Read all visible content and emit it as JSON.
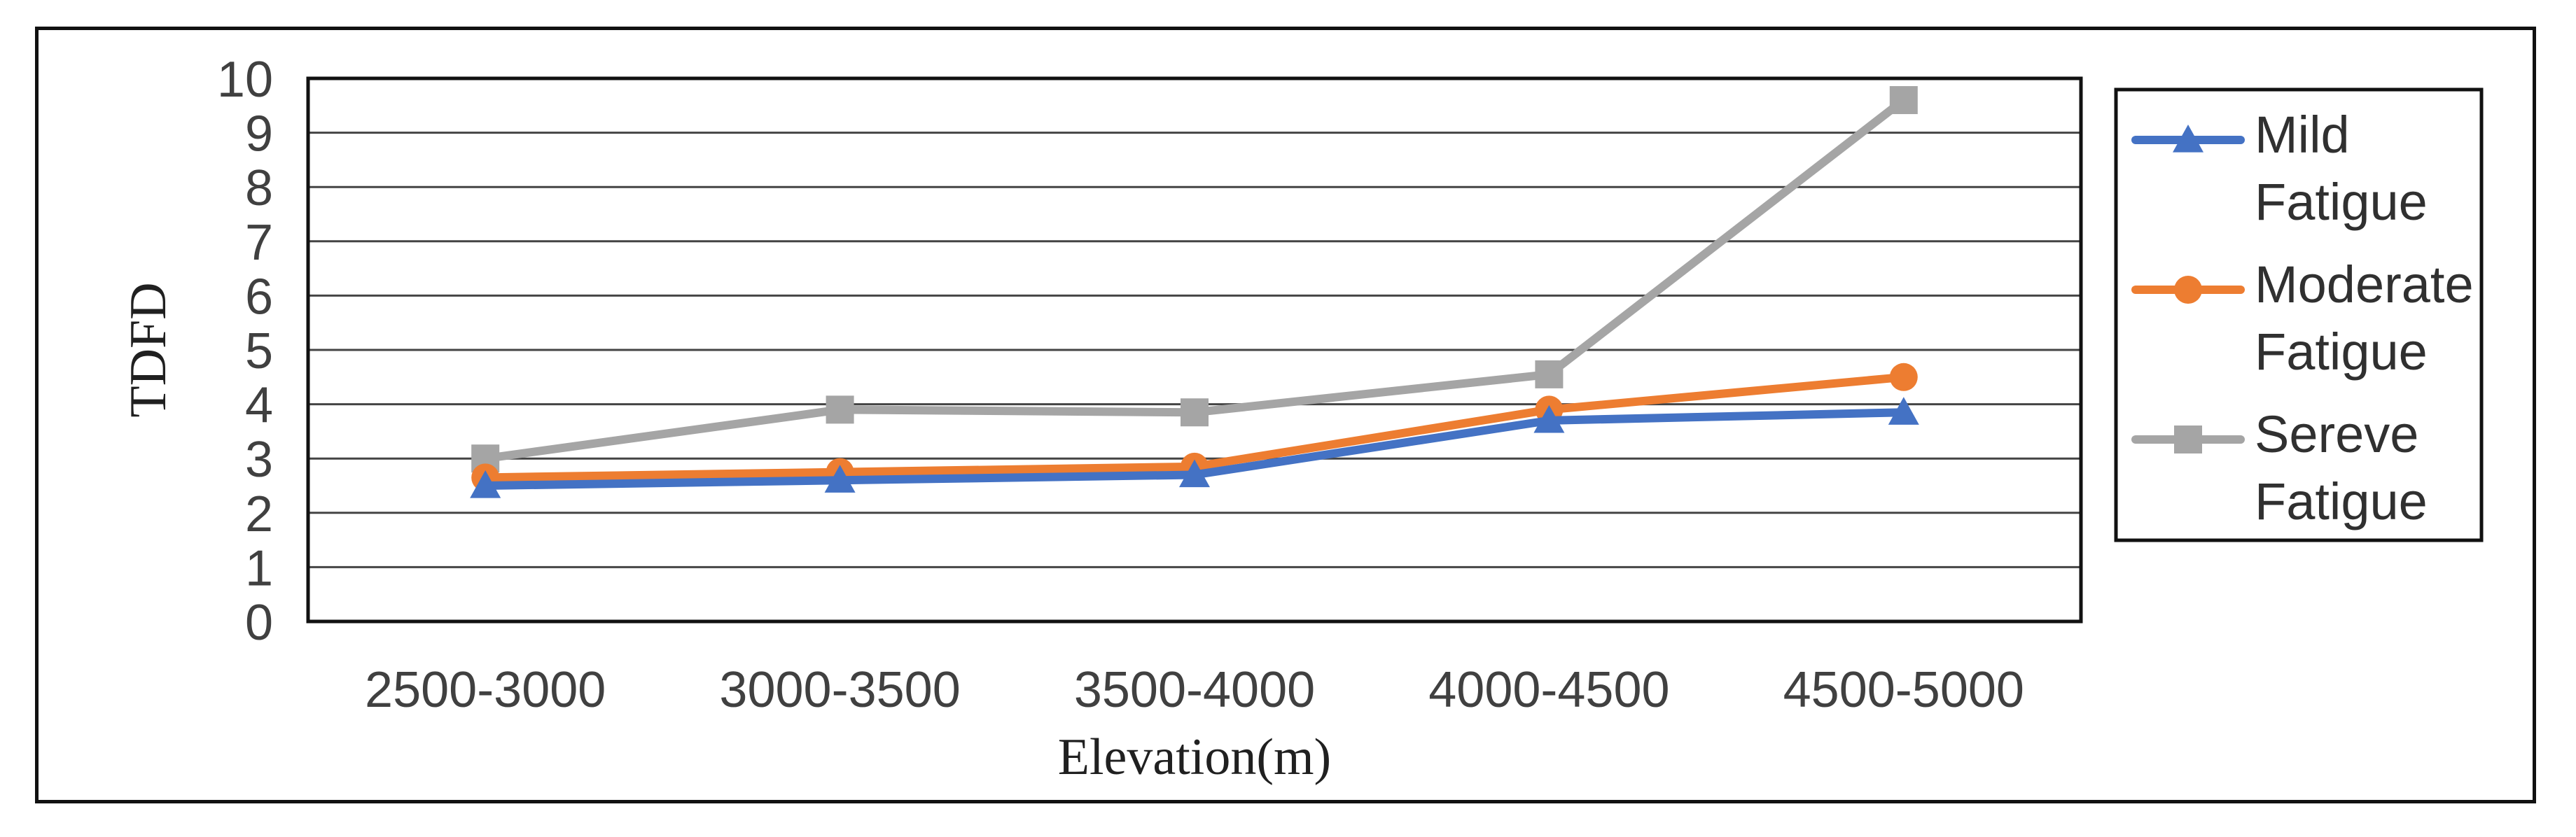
{
  "chart_data": {
    "type": "line",
    "title": "",
    "xlabel": "Elevation(m)",
    "ylabel": "TDFD",
    "categories": [
      "2500-3000",
      "3000-3500",
      "3500-4000",
      "4000-4500",
      "4500-5000"
    ],
    "ylim": [
      0,
      10
    ],
    "yticks": [
      "0",
      "1",
      "2",
      "3",
      "4",
      "5",
      "6",
      "7",
      "8",
      "9",
      "10"
    ],
    "grid": true,
    "legend_position": "right",
    "series": [
      {
        "name": "Mild Fatigue",
        "legend_lines": [
          "Mild",
          "Fatigue"
        ],
        "color": "#4472C4",
        "marker": "triangle",
        "values": [
          2.5,
          2.6,
          2.7,
          3.7,
          3.85
        ]
      },
      {
        "name": "Moderate Fatigue",
        "legend_lines": [
          "Moderate",
          "Fatigue"
        ],
        "color": "#ED7D31",
        "marker": "circle",
        "values": [
          2.65,
          2.75,
          2.85,
          3.9,
          4.5
        ]
      },
      {
        "name": "Sereve Fatigue",
        "legend_lines": [
          "Sereve",
          "Fatigue"
        ],
        "color": "#A5A5A5",
        "marker": "square",
        "values": [
          3.0,
          3.9,
          3.85,
          4.55,
          9.6
        ]
      }
    ]
  }
}
